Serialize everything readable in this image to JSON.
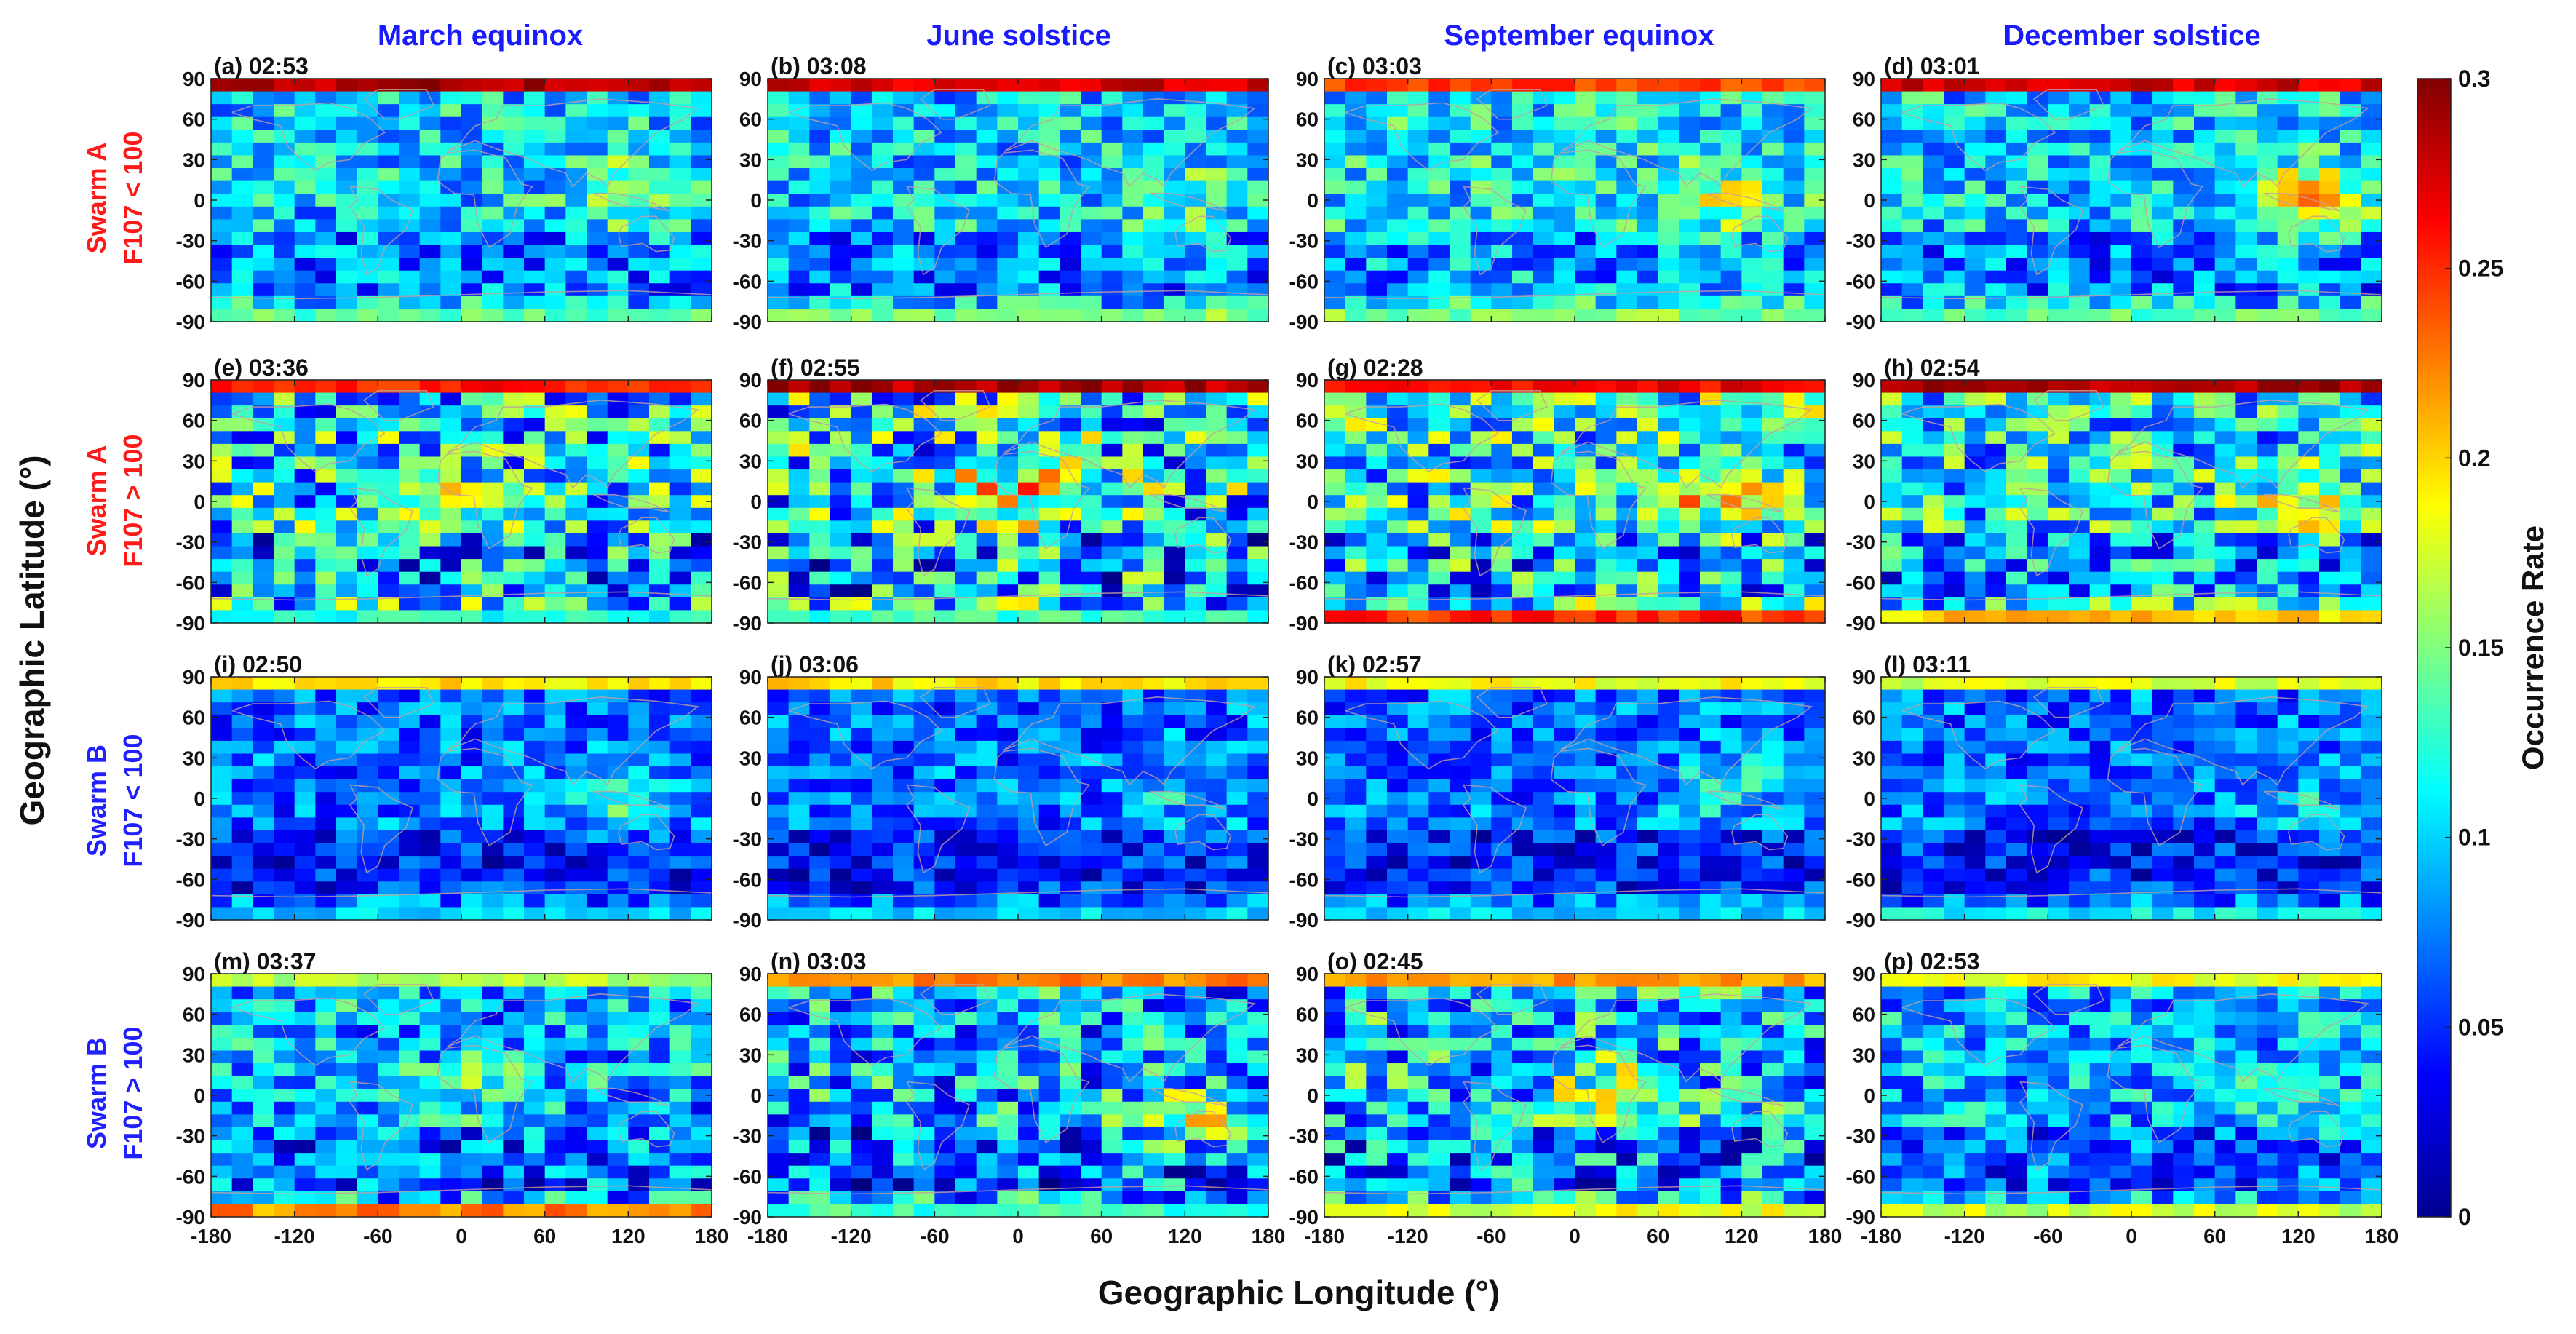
{
  "figure": {
    "ylabel": "Geographic Latitude (°)",
    "xlabel": "Geographic Longitude (°)",
    "colorbar_label": "Occurrence Rate"
  },
  "columns": [
    {
      "title": "March equinox"
    },
    {
      "title": "June solstice"
    },
    {
      "title": "September equinox"
    },
    {
      "title": "December solstice"
    }
  ],
  "rows": [
    {
      "line1": "Swarm A",
      "line2": "F107 < 100",
      "color": "#ff1a1a"
    },
    {
      "line1": "Swarm A",
      "line2": "F107 > 100",
      "color": "#ff1a1a"
    },
    {
      "line1": "Swarm B",
      "line2": "F107 < 100",
      "color": "#2020ff"
    },
    {
      "line1": "Swarm B",
      "line2": "F107 > 100",
      "color": "#2020ff"
    }
  ],
  "colors": {
    "column_title": "#1a1aff",
    "coastline": "#c0a0a0"
  },
  "chart_data": {
    "type": "heatmap",
    "colormap": "jet",
    "colorbar_ticks": [
      "0",
      "0.05",
      "0.1",
      "0.15",
      "0.2",
      "0.25",
      "0.3"
    ],
    "clim": [
      0,
      0.3
    ],
    "xlim": [
      -180,
      180
    ],
    "ylim": [
      -90,
      90
    ],
    "xticks": [
      "-180",
      "-120",
      "-60",
      "0",
      "60",
      "120",
      "180"
    ],
    "yticks": [
      "90",
      "60",
      "30",
      "0",
      "-30",
      "-60",
      "-90"
    ],
    "panels": [
      {
        "label": "(a) 02:53",
        "base": 0.1,
        "var": 0.05,
        "seed": 11,
        "pole_n": 0.3,
        "pole_s": 0.16,
        "hot": [
          120,
          5,
          0.07
        ]
      },
      {
        "label": "(b) 03:08",
        "base": 0.1,
        "var": 0.05,
        "seed": 12,
        "pole_n": 0.29,
        "pole_s": 0.17,
        "hot": [
          120,
          0,
          0.04
        ]
      },
      {
        "label": "(c) 03:03",
        "base": 0.11,
        "var": 0.05,
        "seed": 13,
        "pole_n": 0.26,
        "pole_s": 0.17,
        "hot": [
          110,
          0,
          0.05
        ]
      },
      {
        "label": "(d) 03:01",
        "base": 0.1,
        "var": 0.05,
        "seed": 14,
        "pole_n": 0.29,
        "pole_s": 0.16,
        "hot": [
          130,
          0,
          0.11
        ]
      },
      {
        "label": "(e) 03:36",
        "base": 0.11,
        "var": 0.08,
        "seed": 21,
        "pole_n": 0.27,
        "pole_s": 0.14,
        "hot": [
          0,
          0,
          0.04
        ]
      },
      {
        "label": "(f) 02:55",
        "base": 0.11,
        "var": 0.09,
        "seed": 22,
        "pole_n": 0.3,
        "pole_s": 0.15,
        "hot": [
          0,
          5,
          0.09
        ]
      },
      {
        "label": "(g) 02:28",
        "base": 0.12,
        "var": 0.08,
        "seed": 23,
        "pole_n": 0.28,
        "pole_s": 0.27,
        "hot": [
          100,
          0,
          0.06
        ]
      },
      {
        "label": "(h) 02:54",
        "base": 0.11,
        "var": 0.07,
        "seed": 24,
        "pole_n": 0.3,
        "pole_s": 0.22,
        "hot": [
          120,
          -5,
          0.06
        ]
      },
      {
        "label": "(i) 02:50",
        "base": 0.07,
        "var": 0.04,
        "seed": 31,
        "pole_n": 0.21,
        "pole_s": 0.12,
        "hot": [
          120,
          0,
          0.06
        ]
      },
      {
        "label": "(j) 03:06",
        "base": 0.07,
        "var": 0.04,
        "seed": 32,
        "pole_n": 0.21,
        "pole_s": 0.12,
        "hot": [
          120,
          0,
          0.03
        ]
      },
      {
        "label": "(k) 02:57",
        "base": 0.07,
        "var": 0.04,
        "seed": 33,
        "pole_n": 0.2,
        "pole_s": 0.12,
        "hot": [
          110,
          10,
          0.05
        ]
      },
      {
        "label": "(l) 03:11",
        "base": 0.07,
        "var": 0.04,
        "seed": 34,
        "pole_n": 0.19,
        "pole_s": 0.13,
        "hot": [
          120,
          0,
          0.03
        ]
      },
      {
        "label": "(m) 03:37",
        "base": 0.09,
        "var": 0.06,
        "seed": 41,
        "pole_n": 0.18,
        "pole_s": 0.24,
        "hot": [
          0,
          5,
          0.04
        ]
      },
      {
        "label": "(n) 03:03",
        "base": 0.09,
        "var": 0.07,
        "seed": 42,
        "pole_n": 0.24,
        "pole_s": 0.15,
        "hot": [
          120,
          -20,
          0.08
        ]
      },
      {
        "label": "(o) 02:45",
        "base": 0.1,
        "var": 0.07,
        "seed": 43,
        "pole_n": 0.23,
        "pole_s": 0.2,
        "hot": [
          30,
          0,
          0.08
        ]
      },
      {
        "label": "(p) 02:53",
        "base": 0.09,
        "var": 0.05,
        "seed": 44,
        "pole_n": 0.2,
        "pole_s": 0.19,
        "hot": [
          120,
          -10,
          0.04
        ]
      }
    ]
  }
}
